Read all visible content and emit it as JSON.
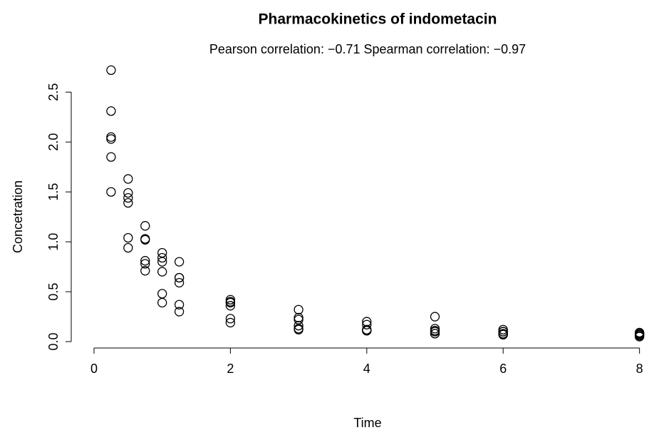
{
  "chart_data": {
    "type": "scatter",
    "title": "Pharmacokinetics of indometacin",
    "subtitle": "Pearson correlation: −0.71 Spearman correlation: −0.97",
    "x_label": "Time",
    "y_label": "Concetration",
    "color": "#000000",
    "x": [
      0.25,
      0.5,
      0.75,
      1,
      1.25,
      2,
      3,
      4,
      5,
      6,
      8,
      0.25,
      0.5,
      0.75,
      1,
      1.25,
      2,
      3,
      4,
      5,
      6,
      8,
      0.25,
      0.5,
      0.75,
      1,
      1.25,
      2,
      3,
      4,
      5,
      6,
      8,
      0.25,
      0.5,
      0.75,
      1,
      1.25,
      2,
      3,
      4,
      5,
      6,
      8,
      0.25,
      0.5,
      0.75,
      1,
      1.25,
      2,
      3,
      4,
      5,
      6,
      8,
      0.25,
      0.5,
      0.75,
      1,
      1.25,
      2,
      3,
      4,
      5,
      6,
      8
    ],
    "values": [
      1.5,
      0.94,
      0.78,
      0.48,
      0.37,
      0.19,
      0.12,
      0.11,
      0.08,
      0.07,
      0.05,
      2.03,
      1.63,
      0.71,
      0.7,
      0.64,
      0.36,
      0.32,
      0.2,
      0.25,
      0.12,
      0.08,
      2.72,
      1.49,
      1.16,
      0.8,
      0.8,
      0.39,
      0.22,
      0.12,
      0.11,
      0.08,
      0.08,
      1.85,
      1.39,
      1.02,
      0.89,
      0.59,
      0.4,
      0.16,
      0.11,
      0.1,
      0.07,
      0.07,
      2.05,
      1.04,
      0.81,
      0.39,
      0.3,
      0.23,
      0.13,
      0.11,
      0.08,
      0.1,
      0.06,
      2.31,
      1.44,
      1.03,
      0.84,
      0.64,
      0.42,
      0.24,
      0.17,
      0.13,
      0.1,
      0.09
    ],
    "xlim": [
      -0.334,
      8.15
    ],
    "xticks": [
      0,
      2,
      4,
      6,
      8
    ],
    "ylim": [
      -0.064,
      2.83
    ],
    "yticks": [
      {
        "value": 0,
        "label": "0.0"
      },
      0.5,
      {
        "value": 1,
        "label": "1.0"
      },
      1.5,
      {
        "value": 2,
        "label": "2.0"
      },
      2.5
    ]
  }
}
